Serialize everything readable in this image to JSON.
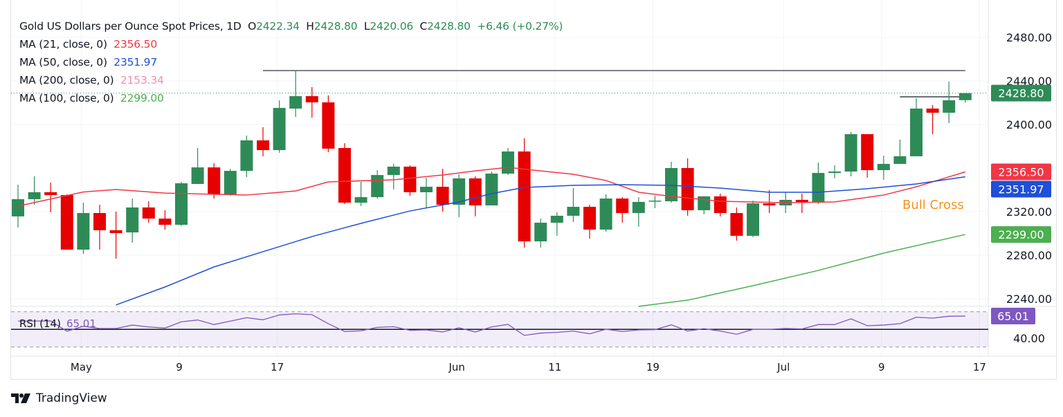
{
  "header": {
    "title": "Gold US Dollars per Ounce Spot Prices, 1D",
    "o_label": "O",
    "o_value": "2422.34",
    "h_label": "H",
    "h_value": "2428.80",
    "l_label": "L",
    "l_value": "2420.06",
    "c_label": "C",
    "c_value": "2428.80",
    "change": "+6.46 (+0.27%)"
  },
  "indicators": [
    {
      "label": "MA (21, close, 0)",
      "value": "2356.50",
      "color": "#f23645"
    },
    {
      "label": "MA (50, close, 0)",
      "value": "2351.97",
      "color": "#1e4fd6"
    },
    {
      "label": "MA (200, close, 0)",
      "value": "2153.34",
      "color": "#f48fb1"
    },
    {
      "label": "MA (100, close, 0)",
      "value": "2299.00",
      "color": "#4caf50"
    }
  ],
  "annotation": {
    "text": "Bull Cross",
    "color": "#f7931a"
  },
  "logo": {
    "text": "TradingView"
  },
  "chart_data": [
    {
      "type": "candlestick",
      "title": "Gold US Dollars per Ounce Spot Prices, 1D",
      "ylim": [
        2226,
        2492
      ],
      "y_ticks": [
        "2480.00",
        "2440.00",
        "2400.00",
        "2320.00",
        "2280.00",
        "2240.00"
      ],
      "x_ticks": [
        {
          "label": "May",
          "date": "May 1"
        },
        {
          "label": "9",
          "date": "May 9"
        },
        {
          "label": "17",
          "date": "May 17"
        },
        {
          "label": "Jun",
          "date": "Jun 3"
        },
        {
          "label": "11",
          "date": "Jun 11"
        },
        {
          "label": "19",
          "date": "Jun 19"
        },
        {
          "label": "Jul",
          "date": "Jul 1"
        },
        {
          "label": "9",
          "date": "Jul 9"
        },
        {
          "label": "17",
          "date": "Jul 17"
        }
      ],
      "grid": true,
      "colors": {
        "up": "#2e8b57",
        "down": "#e60000"
      },
      "candles": [
        {
          "date": "Apr 25",
          "o": 2315.6,
          "h": 2344.7,
          "l": 2305.4,
          "c": 2331.4
        },
        {
          "date": "Apr 26",
          "o": 2331.4,
          "h": 2352.4,
          "l": 2326.3,
          "c": 2337.8
        },
        {
          "date": "Apr 29",
          "o": 2337.8,
          "h": 2346.6,
          "l": 2319.4,
          "c": 2335.2
        },
        {
          "date": "Apr 30",
          "o": 2335.2,
          "h": 2335.9,
          "l": 2285.1,
          "c": 2285.1
        },
        {
          "date": "May 1",
          "o": 2285.1,
          "h": 2328.2,
          "l": 2281.2,
          "c": 2318.7
        },
        {
          "date": "May 2",
          "o": 2318.7,
          "h": 2326.3,
          "l": 2285.1,
          "c": 2302.9
        },
        {
          "date": "May 3",
          "o": 2302.9,
          "h": 2320.0,
          "l": 2276.8,
          "c": 2300.3
        },
        {
          "date": "May 6",
          "o": 2300.9,
          "h": 2332.0,
          "l": 2291.4,
          "c": 2323.8
        },
        {
          "date": "May 7",
          "o": 2323.8,
          "h": 2329.5,
          "l": 2309.8,
          "c": 2313.6
        },
        {
          "date": "May 8",
          "o": 2313.6,
          "h": 2321.3,
          "l": 2303.5,
          "c": 2307.9
        },
        {
          "date": "May 9",
          "o": 2307.9,
          "h": 2347.3,
          "l": 2306.7,
          "c": 2346.0
        },
        {
          "date": "May 10",
          "o": 2345.4,
          "h": 2378.4,
          "l": 2345.4,
          "c": 2360.6
        },
        {
          "date": "May 13",
          "o": 2360.6,
          "h": 2364.4,
          "l": 2332.0,
          "c": 2335.9
        },
        {
          "date": "May 14",
          "o": 2335.2,
          "h": 2359.3,
          "l": 2334.6,
          "c": 2357.4
        },
        {
          "date": "May 15",
          "o": 2357.4,
          "h": 2389.8,
          "l": 2351.7,
          "c": 2385.4
        },
        {
          "date": "May 16",
          "o": 2385.4,
          "h": 2397.5,
          "l": 2370.8,
          "c": 2376.5
        },
        {
          "date": "May 17",
          "o": 2376.5,
          "h": 2422.2,
          "l": 2374.0,
          "c": 2415.2
        },
        {
          "date": "May 20",
          "o": 2414.6,
          "h": 2449.5,
          "l": 2407.0,
          "c": 2426.0
        },
        {
          "date": "May 21",
          "o": 2426.0,
          "h": 2434.3,
          "l": 2406.3,
          "c": 2420.3
        },
        {
          "date": "May 22",
          "o": 2420.3,
          "h": 2426.7,
          "l": 2374.6,
          "c": 2377.8
        },
        {
          "date": "May 23",
          "o": 2378.4,
          "h": 2382.8,
          "l": 2327.0,
          "c": 2328.2
        },
        {
          "date": "May 24",
          "o": 2328.2,
          "h": 2347.3,
          "l": 2325.1,
          "c": 2333.3
        },
        {
          "date": "May 27",
          "o": 2333.3,
          "h": 2358.1,
          "l": 2332.0,
          "c": 2353.6
        },
        {
          "date": "May 28",
          "o": 2353.6,
          "h": 2363.8,
          "l": 2340.3,
          "c": 2361.3
        },
        {
          "date": "May 29",
          "o": 2361.3,
          "h": 2362.5,
          "l": 2334.6,
          "c": 2337.8
        },
        {
          "date": "May 30",
          "o": 2337.8,
          "h": 2351.1,
          "l": 2323.2,
          "c": 2342.8
        },
        {
          "date": "May 31",
          "o": 2342.8,
          "h": 2359.3,
          "l": 2320.0,
          "c": 2326.3
        },
        {
          "date": "Jun 3",
          "o": 2326.3,
          "h": 2354.3,
          "l": 2314.9,
          "c": 2350.5
        },
        {
          "date": "Jun 4",
          "o": 2350.5,
          "h": 2352.4,
          "l": 2315.6,
          "c": 2325.7
        },
        {
          "date": "Jun 5",
          "o": 2325.7,
          "h": 2356.8,
          "l": 2325.7,
          "c": 2354.9
        },
        {
          "date": "Jun 6",
          "o": 2354.9,
          "h": 2378.4,
          "l": 2353.6,
          "c": 2375.2
        },
        {
          "date": "Jun 7",
          "o": 2375.2,
          "h": 2387.3,
          "l": 2287.0,
          "c": 2292.7
        },
        {
          "date": "Jun 10",
          "o": 2292.7,
          "h": 2313.6,
          "l": 2287.0,
          "c": 2309.8
        },
        {
          "date": "Jun 11",
          "o": 2309.8,
          "h": 2319.4,
          "l": 2297.8,
          "c": 2316.2
        },
        {
          "date": "Jun 12",
          "o": 2316.2,
          "h": 2341.6,
          "l": 2310.5,
          "c": 2324.4
        },
        {
          "date": "Jun 13",
          "o": 2324.4,
          "h": 2326.3,
          "l": 2295.2,
          "c": 2303.5
        },
        {
          "date": "Jun 14",
          "o": 2303.5,
          "h": 2335.9,
          "l": 2301.6,
          "c": 2332.0
        },
        {
          "date": "Jun 17",
          "o": 2332.0,
          "h": 2333.3,
          "l": 2309.8,
          "c": 2318.7
        },
        {
          "date": "Jun 18",
          "o": 2318.7,
          "h": 2333.3,
          "l": 2306.0,
          "c": 2328.9
        },
        {
          "date": "Jun 19",
          "o": 2330.1,
          "h": 2334.6,
          "l": 2323.2,
          "c": 2330.1
        },
        {
          "date": "Jun 20",
          "o": 2329.5,
          "h": 2365.7,
          "l": 2328.2,
          "c": 2360.0
        },
        {
          "date": "Jun 21",
          "o": 2360.0,
          "h": 2368.9,
          "l": 2316.2,
          "c": 2321.3
        },
        {
          "date": "Jun 24",
          "o": 2321.3,
          "h": 2334.0,
          "l": 2317.5,
          "c": 2334.0
        },
        {
          "date": "Jun 25",
          "o": 2334.0,
          "h": 2336.5,
          "l": 2315.6,
          "c": 2318.7
        },
        {
          "date": "Jun 26",
          "o": 2318.7,
          "h": 2323.8,
          "l": 2293.3,
          "c": 2297.8
        },
        {
          "date": "Jun 27",
          "o": 2297.8,
          "h": 2330.1,
          "l": 2296.5,
          "c": 2327.6
        },
        {
          "date": "Jun 28",
          "o": 2327.6,
          "h": 2339.7,
          "l": 2318.7,
          "c": 2325.7
        },
        {
          "date": "Jul 1",
          "o": 2325.7,
          "h": 2337.8,
          "l": 2318.7,
          "c": 2330.8
        },
        {
          "date": "Jul 2",
          "o": 2330.8,
          "h": 2336.5,
          "l": 2318.7,
          "c": 2328.9
        },
        {
          "date": "Jul 3",
          "o": 2328.9,
          "h": 2365.1,
          "l": 2327.0,
          "c": 2355.5
        },
        {
          "date": "Jul 4",
          "o": 2355.5,
          "h": 2362.5,
          "l": 2350.5,
          "c": 2356.8
        },
        {
          "date": "Jul 5",
          "o": 2356.8,
          "h": 2393.0,
          "l": 2352.4,
          "c": 2391.1
        },
        {
          "date": "Jul 8",
          "o": 2391.1,
          "h": 2391.1,
          "l": 2351.1,
          "c": 2358.1
        },
        {
          "date": "Jul 9",
          "o": 2358.1,
          "h": 2371.4,
          "l": 2349.2,
          "c": 2363.8
        },
        {
          "date": "Jul 10",
          "o": 2363.8,
          "h": 2386.0,
          "l": 2363.8,
          "c": 2370.8
        },
        {
          "date": "Jul 11",
          "o": 2370.8,
          "h": 2424.1,
          "l": 2370.8,
          "c": 2414.6
        },
        {
          "date": "Jul 12",
          "o": 2414.6,
          "h": 2417.8,
          "l": 2391.1,
          "c": 2410.8
        },
        {
          "date": "Jul 15",
          "o": 2410.8,
          "h": 2439.4,
          "l": 2401.3,
          "c": 2422.2
        },
        {
          "date": "Jul 16",
          "o": 2422.34,
          "h": 2428.8,
          "l": 2420.06,
          "c": 2428.8
        }
      ],
      "series": [
        {
          "name": "MA (21, close, 0)",
          "color": "#f23645",
          "last": "2356.50",
          "points": [
            [
              "Apr 25",
              2325.1
            ],
            [
              "May 1",
              2338.0
            ],
            [
              "May 3",
              2340.3
            ],
            [
              "May 8",
              2337.0
            ],
            [
              "May 15",
              2335.2
            ],
            [
              "May 20",
              2339.0
            ],
            [
              "May 22",
              2347.3
            ],
            [
              "May 28",
              2349.2
            ],
            [
              "May 31",
              2353.6
            ],
            [
              "Jun 4",
              2357.4
            ],
            [
              "Jun 6",
              2360.6
            ],
            [
              "Jun 10",
              2357.4
            ],
            [
              "Jun 12",
              2354.3
            ],
            [
              "Jun 14",
              2348.6
            ],
            [
              "Jun 18",
              2337.8
            ],
            [
              "Jun 20",
              2334.0
            ],
            [
              "Jun 25",
              2329.5
            ],
            [
              "Jul 1",
              2328.2
            ],
            [
              "Jul 4",
              2328.9
            ],
            [
              "Jul 9",
              2335.2
            ],
            [
              "Jul 11",
              2342.8
            ],
            [
              "Jul 16",
              2356.5
            ]
          ]
        },
        {
          "name": "MA (50, close, 0)",
          "color": "#1e4fd6",
          "last": "2351.97",
          "points": [
            [
              "May 3",
              2234.3
            ],
            [
              "May 8",
              2250.8
            ],
            [
              "May 13",
              2269.2
            ],
            [
              "May 16",
              2283.2
            ],
            [
              "May 21",
              2297.1
            ],
            [
              "May 24",
              2309.2
            ],
            [
              "May 29",
              2320.6
            ],
            [
              "Jun 3",
              2328.9
            ],
            [
              "Jun 5",
              2336.5
            ],
            [
              "Jun 7",
              2342.2
            ],
            [
              "Jun 12",
              2344.1
            ],
            [
              "Jun 17",
              2344.7
            ],
            [
              "Jun 20",
              2344.1
            ],
            [
              "Jun 25",
              2341.6
            ],
            [
              "Jun 28",
              2337.8
            ],
            [
              "Jul 3",
              2337.8
            ],
            [
              "Jul 8",
              2341.0
            ],
            [
              "Jul 11",
              2345.4
            ],
            [
              "Jul 16",
              2351.97
            ]
          ]
        },
        {
          "name": "MA (100, close, 0)",
          "color": "#4caf50",
          "last": "2299.00",
          "points": [
            [
              "Jun 18",
              2233.0
            ],
            [
              "Jun 21",
              2238.7
            ],
            [
              "Jun 27",
              2252.0
            ],
            [
              "Jul 3",
              2266.0
            ],
            [
              "Jul 9",
              2281.9
            ],
            [
              "Jul 16",
              2299.0
            ]
          ]
        }
      ],
      "horizontal_lines": [
        {
          "price": 2449.5,
          "from": "May 16",
          "to": "Jul 16",
          "color": "#434651"
        },
        {
          "price": 2425.4,
          "from": "Jul 10",
          "to": "Jul 16",
          "color": "#131722"
        }
      ],
      "last_price": {
        "value": 2428.8,
        "label": "2428.80",
        "color": "#2e8b57"
      }
    },
    {
      "type": "line",
      "title": "RSI (14)",
      "value_label": "65.01",
      "color": "#7e57c2",
      "ylim": [
        25,
        72
      ],
      "y_ticks": [
        "40.00"
      ],
      "bands": [
        30,
        70
      ],
      "midline": 50,
      "values": [
        [
          "Apr 25",
          59.3
        ],
        [
          "Apr 26",
          59.4
        ],
        [
          "Apr 29",
          59.5
        ],
        [
          "Apr 30",
          47.8
        ],
        [
          "May 1",
          53.5
        ],
        [
          "May 2",
          50.9
        ],
        [
          "May 3",
          50.9
        ],
        [
          "May 6",
          54.8
        ],
        [
          "May 7",
          52.7
        ],
        [
          "May 8",
          51.4
        ],
        [
          "May 9",
          58.5
        ],
        [
          "May 10",
          60.6
        ],
        [
          "May 13",
          55.4
        ],
        [
          "May 14",
          59.3
        ],
        [
          "May 15",
          63.2
        ],
        [
          "May 16",
          60.8
        ],
        [
          "May 17",
          66.3
        ],
        [
          "May 20",
          67.6
        ],
        [
          "May 21",
          66.6
        ],
        [
          "May 22",
          56.4
        ],
        [
          "May 23",
          47.5
        ],
        [
          "May 24",
          48.3
        ],
        [
          "May 27",
          52.2
        ],
        [
          "May 28",
          53.0
        ],
        [
          "May 29",
          48.8
        ],
        [
          "May 30",
          49.3
        ],
        [
          "May 31",
          47.0
        ],
        [
          "Jun 3",
          51.7
        ],
        [
          "Jun 4",
          47.0
        ],
        [
          "Jun 5",
          52.7
        ],
        [
          "Jun 6",
          55.6
        ],
        [
          "Jun 7",
          43.1
        ],
        [
          "Jun 10",
          45.7
        ],
        [
          "Jun 11",
          46.5
        ],
        [
          "Jun 12",
          48.0
        ],
        [
          "Jun 13",
          44.9
        ],
        [
          "Jun 14",
          50.1
        ],
        [
          "Jun 17",
          47.5
        ],
        [
          "Jun 18",
          49.3
        ],
        [
          "Jun 19",
          49.6
        ],
        [
          "Jun 20",
          55.1
        ],
        [
          "Jun 21",
          48.0
        ],
        [
          "Jun 24",
          50.7
        ],
        [
          "Jun 25",
          48.0
        ],
        [
          "Jun 26",
          44.4
        ],
        [
          "Jun 27",
          49.9
        ],
        [
          "Jun 28",
          49.9
        ],
        [
          "Jul 1",
          50.9
        ],
        [
          "Jul 2",
          50.4
        ],
        [
          "Jul 3",
          55.4
        ],
        [
          "Jul 4",
          55.4
        ],
        [
          "Jul 5",
          61.9
        ],
        [
          "Jul 8",
          54.1
        ],
        [
          "Jul 9",
          54.8
        ],
        [
          "Jul 10",
          56.4
        ],
        [
          "Jul 11",
          63.7
        ],
        [
          "Jul 12",
          62.7
        ],
        [
          "Jul 15",
          64.8
        ],
        [
          "Jul 16",
          65.01
        ]
      ]
    }
  ]
}
